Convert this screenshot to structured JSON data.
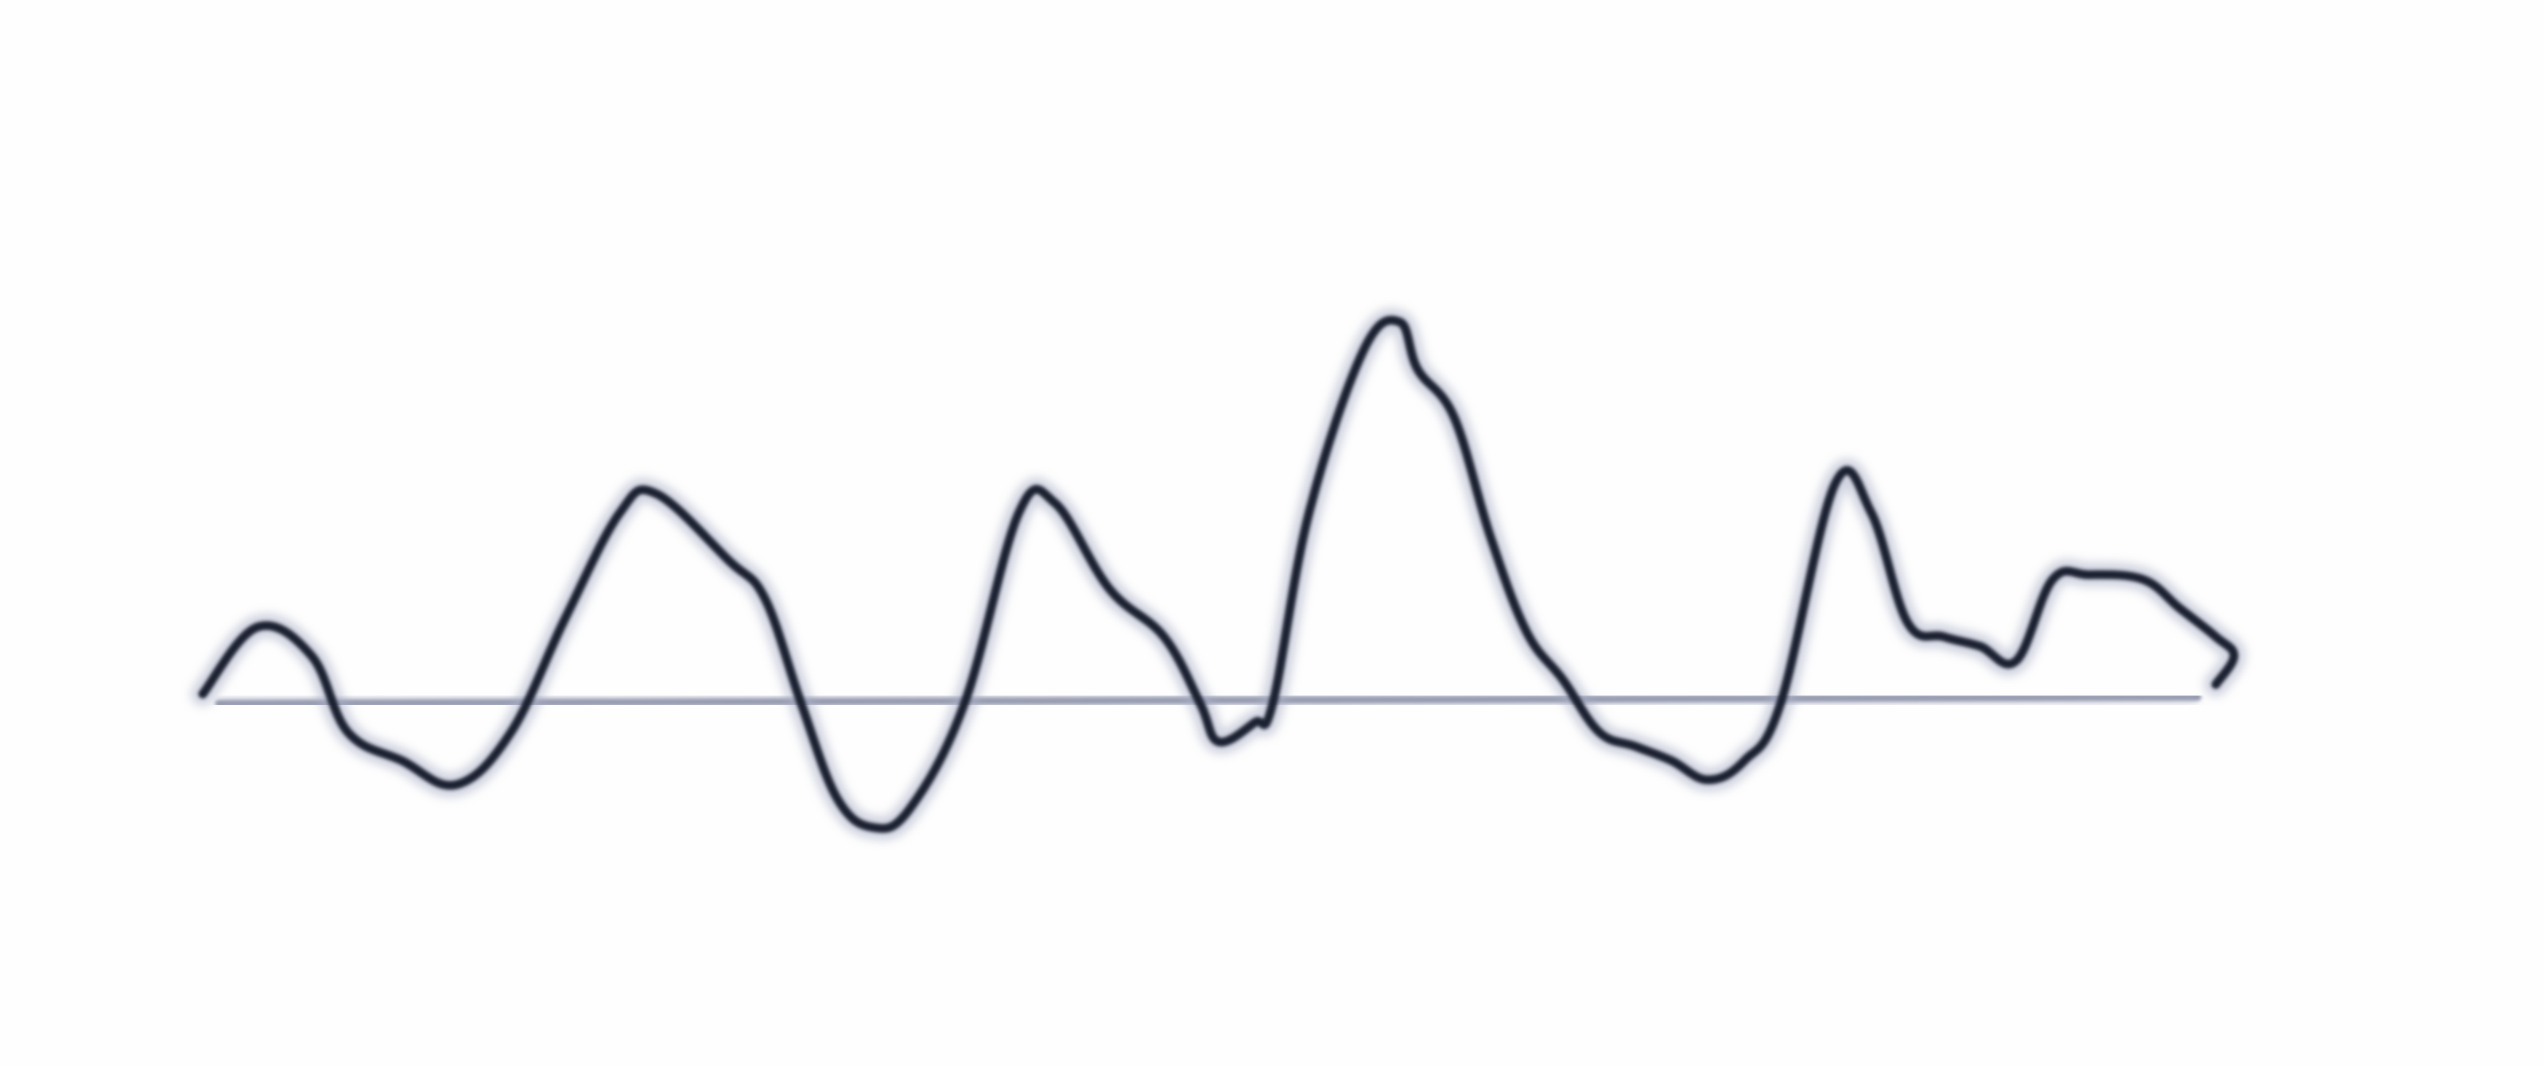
{
  "sketch": {
    "background_color": "#fefefe",
    "ink_color": "#1f2233",
    "halo_color": "#a9afc6",
    "baseline_color": "#8e92a6",
    "samples": [
      [
        0.0,
        0.02
      ],
      [
        0.03,
        0.16
      ],
      [
        0.06,
        0.1
      ],
      [
        0.08,
        -0.06
      ],
      [
        0.11,
        -0.12
      ],
      [
        0.14,
        -0.17
      ],
      [
        0.17,
        -0.06
      ],
      [
        0.2,
        0.18
      ],
      [
        0.23,
        0.4
      ],
      [
        0.25,
        0.44
      ],
      [
        0.29,
        0.3
      ],
      [
        0.31,
        0.22
      ],
      [
        0.33,
        0.0
      ],
      [
        0.35,
        -0.2
      ],
      [
        0.37,
        -0.26
      ],
      [
        0.39,
        -0.22
      ],
      [
        0.42,
        0.0
      ],
      [
        0.45,
        0.4
      ],
      [
        0.47,
        0.42
      ],
      [
        0.5,
        0.24
      ],
      [
        0.53,
        0.14
      ],
      [
        0.55,
        0.0
      ],
      [
        0.56,
        -0.08
      ],
      [
        0.58,
        -0.04
      ],
      [
        0.59,
        0.0
      ],
      [
        0.61,
        0.4
      ],
      [
        0.64,
        0.74
      ],
      [
        0.66,
        0.8
      ],
      [
        0.67,
        0.7
      ],
      [
        0.69,
        0.6
      ],
      [
        0.71,
        0.35
      ],
      [
        0.73,
        0.15
      ],
      [
        0.75,
        0.05
      ],
      [
        0.77,
        -0.06
      ],
      [
        0.79,
        -0.09
      ],
      [
        0.81,
        -0.12
      ],
      [
        0.83,
        -0.16
      ],
      [
        0.85,
        -0.12
      ],
      [
        0.87,
        0.0
      ],
      [
        0.9,
        0.46
      ],
      [
        0.92,
        0.4
      ],
      [
        0.94,
        0.17
      ],
      [
        0.96,
        0.14
      ],
      [
        0.98,
        0.12
      ],
      [
        1.0,
        0.09
      ],
      [
        1.02,
        0.26
      ],
      [
        1.04,
        0.27
      ],
      [
        1.07,
        0.26
      ],
      [
        1.09,
        0.2
      ],
      [
        1.11,
        0.14
      ],
      [
        1.12,
        0.1
      ],
      [
        1.11,
        0.04
      ]
    ]
  }
}
